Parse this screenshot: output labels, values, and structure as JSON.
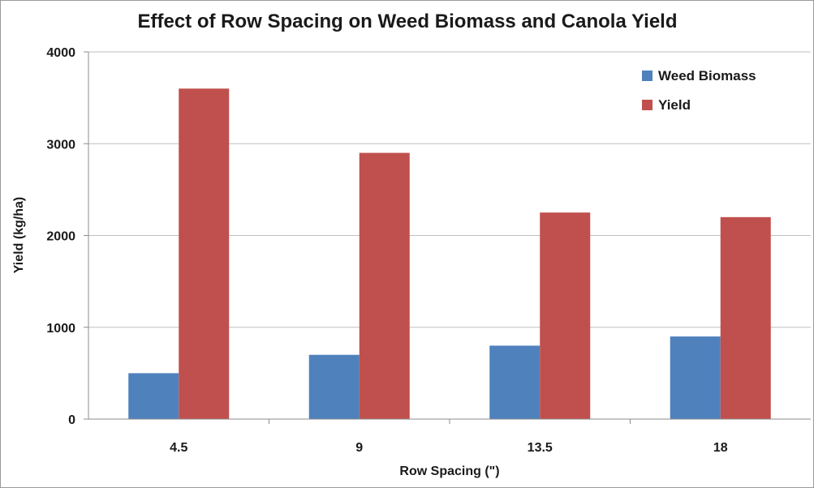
{
  "chart_data": {
    "type": "bar",
    "title": "Effect of Row Spacing on Weed Biomass and Canola Yield",
    "xlabel": "Row Spacing (\")",
    "ylabel": "Yield (kg/ha)",
    "categories": [
      "4.5",
      "9",
      "13.5",
      "18"
    ],
    "series": [
      {
        "name": "Weed Biomass",
        "color": "#4f81bd",
        "values": [
          500,
          700,
          800,
          900
        ]
      },
      {
        "name": "Yield",
        "color": "#c0504d",
        "values": [
          3600,
          2900,
          2250,
          2200
        ]
      }
    ],
    "ylim": [
      0,
      4000
    ],
    "yticks": [
      "0",
      "1000",
      "2000",
      "3000",
      "4000"
    ],
    "grid": true,
    "legend_position": "top-right"
  }
}
